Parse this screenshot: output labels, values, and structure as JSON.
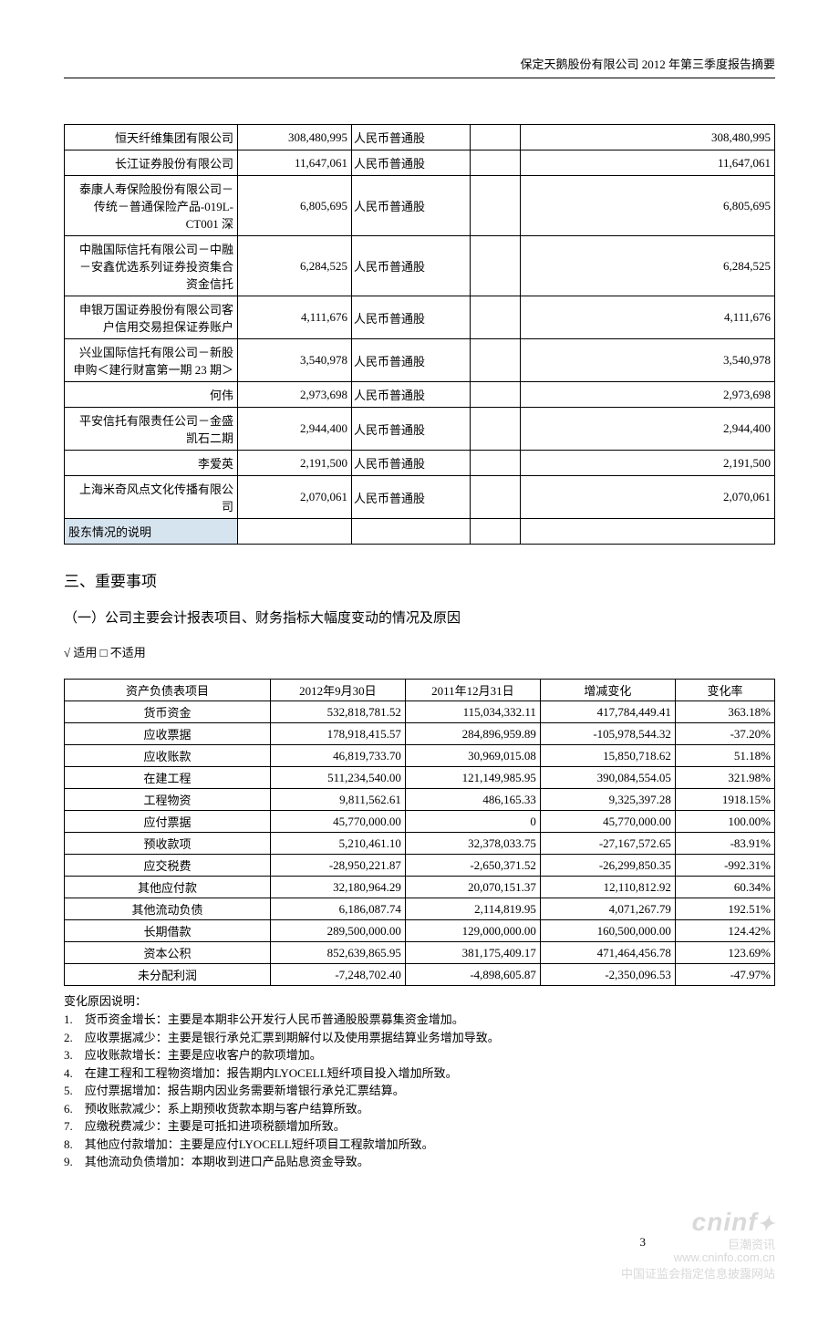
{
  "header": "保定天鹅股份有限公司 2012 年第三季度报告摘要",
  "shareholders": {
    "rows": [
      {
        "name": "恒天纤维集团有限公司",
        "v1": "308,480,995",
        "type": "人民币普通股",
        "v2": "308,480,995"
      },
      {
        "name": "长江证券股份有限公司",
        "v1": "11,647,061",
        "type": "人民币普通股",
        "v2": "11,647,061"
      },
      {
        "name": "泰康人寿保险股份有限公司－传统－普通保险产品-019L-CT001 深",
        "v1": "6,805,695",
        "type": "人民币普通股",
        "v2": "6,805,695"
      },
      {
        "name": "中融国际信托有限公司－中融－安鑫优选系列证券投资集合资金信托",
        "v1": "6,284,525",
        "type": "人民币普通股",
        "v2": "6,284,525"
      },
      {
        "name": "申银万国证券股份有限公司客户信用交易担保证券账户",
        "v1": "4,111,676",
        "type": "人民币普通股",
        "v2": "4,111,676"
      },
      {
        "name": "兴业国际信托有限公司－新股申购＜建行财富第一期 23 期＞",
        "v1": "3,540,978",
        "type": "人民币普通股",
        "v2": "3,540,978"
      },
      {
        "name": "何伟",
        "v1": "2,973,698",
        "type": "人民币普通股",
        "v2": "2,973,698"
      },
      {
        "name": "平安信托有限责任公司－金盛凯石二期",
        "v1": "2,944,400",
        "type": "人民币普通股",
        "v2": "2,944,400"
      },
      {
        "name": "李爱英",
        "v1": "2,191,500",
        "type": "人民币普通股",
        "v2": "2,191,500"
      },
      {
        "name": "上海米奇风点文化传播有限公司",
        "v1": "2,070,061",
        "type": "人民币普通股",
        "v2": "2,070,061"
      }
    ],
    "footer_label": "股东情况的说明"
  },
  "section3_title": "三、重要事项",
  "section3_1_title": "（一）公司主要会计报表项目、财务指标大幅度变动的情况及原因",
  "applicable_line": "√ 适用 □ 不适用",
  "balance": {
    "headers": [
      "资产负债表项目",
      "2012年9月30日",
      "2011年12月31日",
      "增减变化",
      "变化率"
    ],
    "rows": [
      [
        "货币资金",
        "532,818,781.52",
        "115,034,332.11",
        "417,784,449.41",
        "363.18%"
      ],
      [
        "应收票据",
        "178,918,415.57",
        "284,896,959.89",
        "-105,978,544.32",
        "-37.20%"
      ],
      [
        "应收账款",
        "46,819,733.70",
        "30,969,015.08",
        "15,850,718.62",
        "51.18%"
      ],
      [
        "在建工程",
        "511,234,540.00",
        "121,149,985.95",
        "390,084,554.05",
        "321.98%"
      ],
      [
        "工程物资",
        "9,811,562.61",
        "486,165.33",
        "9,325,397.28",
        "1918.15%"
      ],
      [
        "应付票据",
        "45,770,000.00",
        "0",
        "45,770,000.00",
        "100.00%"
      ],
      [
        "预收款项",
        "5,210,461.10",
        "32,378,033.75",
        "-27,167,572.65",
        "-83.91%"
      ],
      [
        "应交税费",
        "-28,950,221.87",
        "-2,650,371.52",
        "-26,299,850.35",
        "-992.31%"
      ],
      [
        "其他应付款",
        "32,180,964.29",
        "20,070,151.37",
        "12,110,812.92",
        "60.34%"
      ],
      [
        "其他流动负债",
        "6,186,087.74",
        "2,114,819.95",
        "4,071,267.79",
        "192.51%"
      ],
      [
        "长期借款",
        "289,500,000.00",
        "129,000,000.00",
        "160,500,000.00",
        "124.42%"
      ],
      [
        "资本公积",
        "852,639,865.95",
        "381,175,409.17",
        "471,464,456.78",
        "123.69%"
      ],
      [
        "未分配利润",
        "-7,248,702.40",
        "-4,898,605.87",
        "-2,350,096.53",
        "-47.97%"
      ]
    ]
  },
  "notes_title": "变化原因说明：",
  "notes": [
    "货币资金增长：主要是本期非公开发行人民币普通股股票募集资金增加。",
    "应收票据减少：主要是银行承兑汇票到期解付以及使用票据结算业务增加导致。",
    "应收账款增长：主要是应收客户的款项增加。",
    "在建工程和工程物资增加：报告期内LYOCELL短纤项目投入增加所致。",
    "应付票据增加：报告期内因业务需要新增银行承兑汇票结算。",
    "预收账款减少：系上期预收货款本期与客户结算所致。",
    "应缴税费减少：主要是可抵扣进项税额增加所致。",
    "其他应付款增加：主要是应付LYOCELL短纤项目工程款增加所致。",
    "其他流动负债增加：本期收到进口产品贴息资金导致。"
  ],
  "page_number": "3",
  "watermark": {
    "brand": "cninf",
    "sub1": "巨潮资讯",
    "sub2": "www.cninfo.com.cn",
    "sub3": "中国证监会指定信息披露网站"
  },
  "colors": {
    "header_cell_bg": "#d6e4f0",
    "border": "#000000",
    "watermark": "#d9d9d9"
  }
}
